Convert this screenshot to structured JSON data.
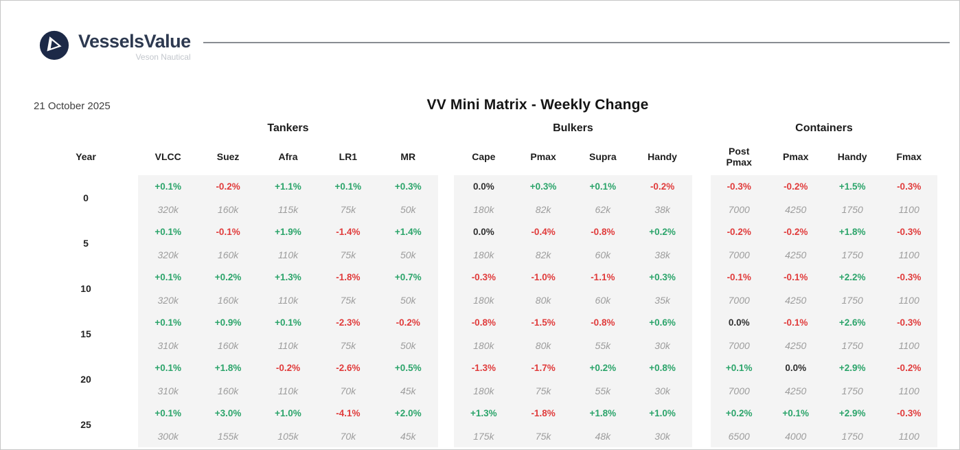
{
  "logo": {
    "brand": "VesselsValue",
    "subtitle": "Veson Nautical"
  },
  "header": {
    "date": "21 October 2025",
    "title": "VV Mini Matrix - Weekly Change"
  },
  "colors": {
    "positive": "#2ba46a",
    "negative": "#e03b3b",
    "neutral": "#2f2f2f",
    "value_text": "#9c9c9c",
    "band_background": "#f4f4f4",
    "logo_navy": "#1c2947"
  },
  "matrix": {
    "year_header": "Year",
    "groups": [
      {
        "label": "Tankers",
        "columns": [
          "VLCC",
          "Suez",
          "Afra",
          "LR1",
          "MR"
        ]
      },
      {
        "label": "Bulkers",
        "columns": [
          "Cape",
          "Pmax",
          "Supra",
          "Handy"
        ]
      },
      {
        "label": "Containers",
        "columns": [
          "Post Pmax",
          "Pmax",
          "Handy",
          "Fmax"
        ]
      }
    ],
    "rows": [
      {
        "year": "0",
        "groups": [
          {
            "pct": [
              "+0.1%",
              "-0.2%",
              "+1.1%",
              "+0.1%",
              "+0.3%"
            ],
            "val": [
              "320k",
              "160k",
              "115k",
              "75k",
              "50k"
            ]
          },
          {
            "pct": [
              "0.0%",
              "+0.3%",
              "+0.1%",
              "-0.2%"
            ],
            "val": [
              "180k",
              "82k",
              "62k",
              "38k"
            ]
          },
          {
            "pct": [
              "-0.3%",
              "-0.2%",
              "+1.5%",
              "-0.3%"
            ],
            "val": [
              "7000",
              "4250",
              "1750",
              "1100"
            ]
          }
        ]
      },
      {
        "year": "5",
        "groups": [
          {
            "pct": [
              "+0.1%",
              "-0.1%",
              "+1.9%",
              "-1.4%",
              "+1.4%"
            ],
            "val": [
              "320k",
              "160k",
              "110k",
              "75k",
              "50k"
            ]
          },
          {
            "pct": [
              "0.0%",
              "-0.4%",
              "-0.8%",
              "+0.2%"
            ],
            "val": [
              "180k",
              "82k",
              "60k",
              "38k"
            ]
          },
          {
            "pct": [
              "-0.2%",
              "-0.2%",
              "+1.8%",
              "-0.3%"
            ],
            "val": [
              "7000",
              "4250",
              "1750",
              "1100"
            ]
          }
        ]
      },
      {
        "year": "10",
        "groups": [
          {
            "pct": [
              "+0.1%",
              "+0.2%",
              "+1.3%",
              "-1.8%",
              "+0.7%"
            ],
            "val": [
              "320k",
              "160k",
              "110k",
              "75k",
              "50k"
            ]
          },
          {
            "pct": [
              "-0.3%",
              "-1.0%",
              "-1.1%",
              "+0.3%"
            ],
            "val": [
              "180k",
              "80k",
              "60k",
              "35k"
            ]
          },
          {
            "pct": [
              "-0.1%",
              "-0.1%",
              "+2.2%",
              "-0.3%"
            ],
            "val": [
              "7000",
              "4250",
              "1750",
              "1100"
            ]
          }
        ]
      },
      {
        "year": "15",
        "groups": [
          {
            "pct": [
              "+0.1%",
              "+0.9%",
              "+0.1%",
              "-2.3%",
              "-0.2%"
            ],
            "val": [
              "310k",
              "160k",
              "110k",
              "75k",
              "50k"
            ]
          },
          {
            "pct": [
              "-0.8%",
              "-1.5%",
              "-0.8%",
              "+0.6%"
            ],
            "val": [
              "180k",
              "80k",
              "55k",
              "30k"
            ]
          },
          {
            "pct": [
              "0.0%",
              "-0.1%",
              "+2.6%",
              "-0.3%"
            ],
            "val": [
              "7000",
              "4250",
              "1750",
              "1100"
            ]
          }
        ]
      },
      {
        "year": "20",
        "groups": [
          {
            "pct": [
              "+0.1%",
              "+1.8%",
              "-0.2%",
              "-2.6%",
              "+0.5%"
            ],
            "val": [
              "310k",
              "160k",
              "110k",
              "70k",
              "45k"
            ]
          },
          {
            "pct": [
              "-1.3%",
              "-1.7%",
              "+0.2%",
              "+0.8%"
            ],
            "val": [
              "180k",
              "75k",
              "55k",
              "30k"
            ]
          },
          {
            "pct": [
              "+0.1%",
              "0.0%",
              "+2.9%",
              "-0.2%"
            ],
            "val": [
              "7000",
              "4250",
              "1750",
              "1100"
            ]
          }
        ]
      },
      {
        "year": "25",
        "groups": [
          {
            "pct": [
              "+0.1%",
              "+3.0%",
              "+1.0%",
              "-4.1%",
              "+2.0%"
            ],
            "val": [
              "300k",
              "155k",
              "105k",
              "70k",
              "45k"
            ]
          },
          {
            "pct": [
              "+1.3%",
              "-1.8%",
              "+1.8%",
              "+1.0%"
            ],
            "val": [
              "175k",
              "75k",
              "48k",
              "30k"
            ]
          },
          {
            "pct": [
              "+0.2%",
              "+0.1%",
              "+2.9%",
              "-0.3%"
            ],
            "val": [
              "6500",
              "4000",
              "1750",
              "1100"
            ]
          }
        ]
      }
    ]
  }
}
